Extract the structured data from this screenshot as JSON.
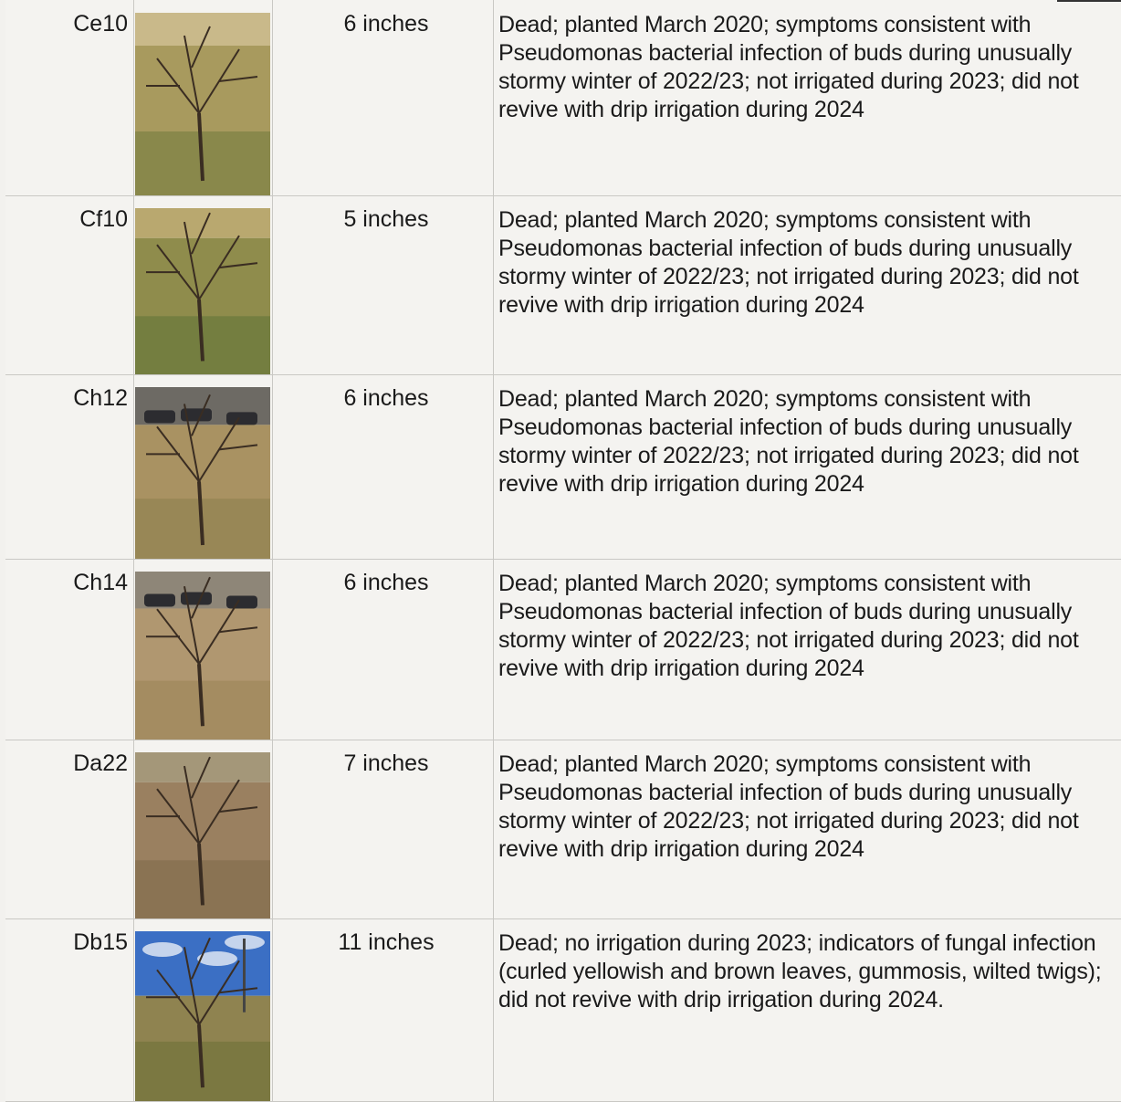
{
  "rows": [
    {
      "id": "Ce10",
      "diameter": "6 inches",
      "notes": "Dead; planted March 2020; symptoms consistent with Pseudomonas bacterial infection of buds during unusually stormy winter of 2022/23; not irrigated during 2023; did not revive with drip irrigation during 2024",
      "photo": "dead-tree-dry-grass-photo",
      "colors": {
        "sky": "#c9b98a",
        "ground": "#a89a5e",
        "grass": "#6f7a3c"
      }
    },
    {
      "id": "Cf10",
      "diameter": "5 inches",
      "notes": "Dead; planted March 2020; symptoms consistent with Pseudomonas bacterial infection of buds during unusually stormy winter of 2022/23; not irrigated during 2023; did not revive with drip irrigation during 2024",
      "photo": "dead-tree-green-grass-photo",
      "colors": {
        "sky": "#b9a86f",
        "ground": "#8f8c4c",
        "grass": "#5f7236"
      }
    },
    {
      "id": "Ch12",
      "diameter": "6 inches",
      "notes": "Dead; planted March 2020; symptoms consistent with Pseudomonas bacterial infection of buds during unusually stormy winter of 2022/23; not irrigated during 2023; did not revive with drip irrigation during 2024",
      "photo": "dead-tree-parking-lot-photo",
      "colors": {
        "sky": "#6d6a64",
        "ground": "#a99262",
        "grass": "#8a7d4c"
      }
    },
    {
      "id": "Ch14",
      "diameter": "6 inches",
      "notes": "Dead; planted March 2020; symptoms consistent with Pseudomonas bacterial infection of buds during unusually stormy winter of 2022/23; not irrigated during 2023; did not revive with drip irrigation during 2024",
      "photo": "dead-tree-mulch-photo",
      "colors": {
        "sky": "#8e8678",
        "ground": "#b09770",
        "grass": "#9b8455"
      }
    },
    {
      "id": "Da22",
      "diameter": "7 inches",
      "notes": "Dead; planted March 2020; symptoms consistent with Pseudomonas bacterial infection of buds during unusually stormy winter of 2022/23; not irrigated during 2023; did not revive with drip irrigation during 2024",
      "photo": "dead-tree-wood-chips-photo",
      "colors": {
        "sky": "#a49779",
        "ground": "#9a8060",
        "grass": "#7d6748"
      }
    },
    {
      "id": "Db15",
      "diameter": "11 inches",
      "notes": "Dead; no irrigation during 2023; indicators of fungal infection (curled yellowish and brown leaves, gummosis, wilted twigs); did not revive with drip irrigation during 2024.",
      "photo": "dead-tree-blue-sky-photo",
      "colors": {
        "sky": "#3b6fc4",
        "ground": "#8f8350",
        "grass": "#6c6f35"
      }
    }
  ]
}
